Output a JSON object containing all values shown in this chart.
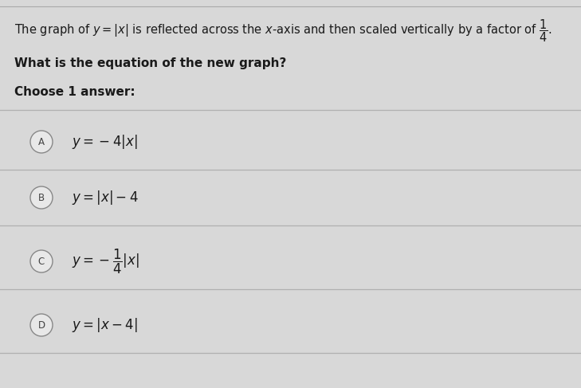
{
  "background_color": "#d8d8d8",
  "panel_color": "#e2e2e2",
  "title_text": "The graph of $y=|x|$ is reflected across the $x$-axis and then scaled vertically by a factor of $\\dfrac{1}{4}$.",
  "question": "What is the equation of the new graph?",
  "choose": "Choose 1 answer:",
  "option_math": [
    "$y=-4|x|$",
    "$y=|x|-4$",
    "$y=-\\dfrac{1}{4}|x|$",
    "$y=|x-4|$"
  ],
  "labels": [
    "A",
    "B",
    "C",
    "D"
  ],
  "divider_color": "#b0b0b0",
  "circle_facecolor": "#e8e8e8",
  "circle_edgecolor": "#888888",
  "text_color": "#1a1a1a",
  "label_color": "#444444",
  "header_fontsize": 10.5,
  "question_fontsize": 11,
  "option_fontsize": 12
}
